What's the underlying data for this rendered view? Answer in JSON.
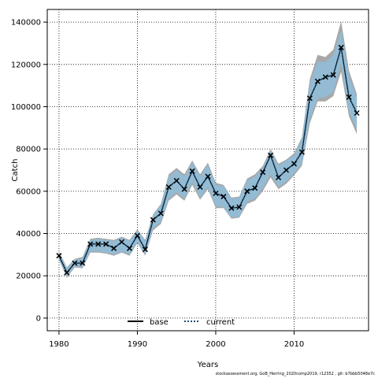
{
  "chart_data": {
    "type": "line",
    "xlabel": "Years",
    "ylabel": "Catch",
    "xlim": [
      1978.5,
      2019.5
    ],
    "ylim": [
      -6000,
      146000
    ],
    "x_ticks": [
      1980,
      1990,
      2000,
      2010
    ],
    "y_ticks": [
      0,
      20000,
      40000,
      60000,
      80000,
      100000,
      120000,
      140000
    ],
    "y_tick_labels": [
      "0",
      "20000",
      "40000",
      "60000",
      "80000",
      "100000",
      "120000",
      "140000"
    ],
    "grid": true,
    "legend_position": "bottom-center",
    "x": [
      1980,
      1981,
      1982,
      1983,
      1984,
      1985,
      1986,
      1987,
      1988,
      1989,
      1990,
      1991,
      1992,
      1993,
      1994,
      1995,
      1996,
      1997,
      1998,
      1999,
      2000,
      2001,
      2002,
      2003,
      2004,
      2005,
      2006,
      2007,
      2008,
      2009,
      2010,
      2011,
      2012,
      2013,
      2014,
      2015,
      2016,
      2017,
      2018
    ],
    "observed_catch": [
      29500,
      21500,
      26000,
      26000,
      35000,
      35000,
      35000,
      33000,
      36000,
      33000,
      39000,
      32500,
      46500,
      49500,
      62000,
      65000,
      61000,
      69500,
      62000,
      67000,
      59000,
      57500,
      52000,
      52500,
      60000,
      61500,
      69000,
      77000,
      66500,
      70000,
      73000,
      78500,
      104000,
      112000,
      114000,
      115000,
      128000,
      104500,
      97000
    ],
    "series": [
      {
        "name": "base",
        "style": "solid",
        "color": "#000000",
        "values": [
          29500,
          21500,
          26000,
          26000,
          35000,
          35000,
          35000,
          33000,
          36000,
          33000,
          39000,
          32500,
          46500,
          49500,
          62000,
          65000,
          61000,
          69500,
          62000,
          67000,
          59000,
          57500,
          52000,
          52500,
          60000,
          61500,
          69000,
          77000,
          66500,
          70000,
          73000,
          78500,
          104000,
          112000,
          114000,
          115000,
          128000,
          104500,
          97000
        ]
      },
      {
        "name": "current",
        "style": "dotted",
        "color": "#1f4e79",
        "values": [
          29500,
          21500,
          26000,
          26000,
          35000,
          35000,
          35000,
          33000,
          36000,
          33000,
          39000,
          32500,
          46500,
          49500,
          62000,
          65000,
          61000,
          69500,
          62000,
          67000,
          59000,
          57500,
          52000,
          52500,
          60000,
          61500,
          69000,
          77000,
          66500,
          70000,
          73000,
          78500,
          104000,
          112000,
          114000,
          115000,
          128000,
          104500,
          97000
        ]
      }
    ],
    "base_band": {
      "color": "#999999",
      "upper": [
        31500,
        24000,
        28000,
        29000,
        37500,
        38000,
        37500,
        37000,
        38500,
        37000,
        42000,
        37000,
        49000,
        54000,
        68000,
        71000,
        68000,
        74500,
        68000,
        73500,
        64000,
        63000,
        57000,
        57500,
        66000,
        68000,
        72000,
        80000,
        73000,
        75000,
        78000,
        85500,
        113000,
        124500,
        123500,
        127000,
        140500,
        117000,
        106000
      ],
      "lower": [
        27500,
        19000,
        24000,
        23500,
        31000,
        31000,
        30500,
        29500,
        31000,
        29500,
        35500,
        29500,
        41500,
        44500,
        55500,
        58500,
        55500,
        63000,
        56000,
        61000,
        52000,
        52000,
        47000,
        47500,
        54000,
        55500,
        60000,
        66500,
        61000,
        63500,
        67500,
        72000,
        92000,
        102500,
        102500,
        105000,
        116500,
        95500,
        87000
      ]
    },
    "current_band": {
      "color": "#90bcd8",
      "upper": [
        31000,
        23500,
        27500,
        28500,
        37000,
        37500,
        37000,
        36500,
        38000,
        36500,
        41500,
        36500,
        48500,
        53500,
        67000,
        70000,
        67000,
        73500,
        67000,
        72500,
        63000,
        62500,
        56500,
        57000,
        65000,
        67000,
        71000,
        79000,
        72000,
        74500,
        77000,
        84500,
        111000,
        121500,
        121000,
        124500,
        136500,
        114500,
        104500
      ],
      "lower": [
        28000,
        19500,
        24500,
        24000,
        31500,
        31500,
        31000,
        30000,
        31500,
        30000,
        36000,
        30000,
        42500,
        45500,
        56500,
        59500,
        56500,
        64500,
        57000,
        62000,
        53000,
        52500,
        47500,
        48000,
        55000,
        56500,
        61500,
        68000,
        62000,
        64500,
        68500,
        73000,
        94000,
        104000,
        104500,
        107000,
        120500,
        97500,
        89000
      ]
    },
    "legend": [
      {
        "label": "base",
        "style": "solid"
      },
      {
        "label": "current",
        "style": "dotted"
      }
    ]
  },
  "footer_text": "stockassessment.org, GoB_Herring_2020comp2019, r12352 , git: b7bbb5048e7c"
}
